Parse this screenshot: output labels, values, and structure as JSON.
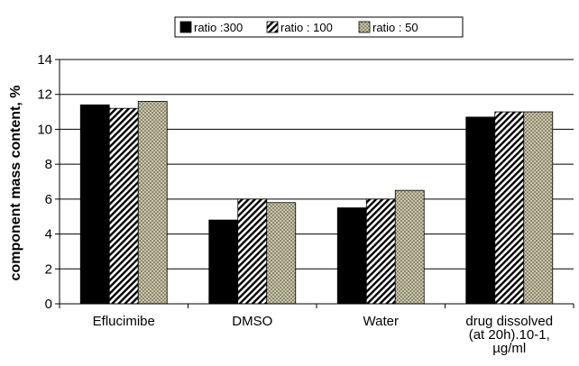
{
  "chart_data": {
    "type": "bar",
    "title": "",
    "xlabel": "",
    "ylabel": "component mass content, %",
    "ylim": [
      0,
      14
    ],
    "yticks": [
      0,
      2,
      4,
      6,
      8,
      10,
      12,
      14
    ],
    "grid": true,
    "legend_position": "top",
    "categories": [
      [
        "Eflucimibe"
      ],
      [
        "DMSO"
      ],
      [
        "Water"
      ],
      [
        "drug dissolved",
        "(at 20h).10-1,",
        "µg/ml"
      ]
    ],
    "series": [
      {
        "name": "ratio :300",
        "values": [
          11.4,
          4.8,
          5.5,
          10.7
        ],
        "fill": "solid",
        "color": "#000000"
      },
      {
        "name": "ratio : 100",
        "values": [
          11.2,
          6.0,
          6.0,
          11.0
        ],
        "fill": "diagonal-hatch",
        "color": "#000000"
      },
      {
        "name": "ratio : 50",
        "values": [
          11.6,
          5.8,
          6.5,
          11.0
        ],
        "fill": "checker",
        "color": "#b8b59a"
      }
    ]
  }
}
